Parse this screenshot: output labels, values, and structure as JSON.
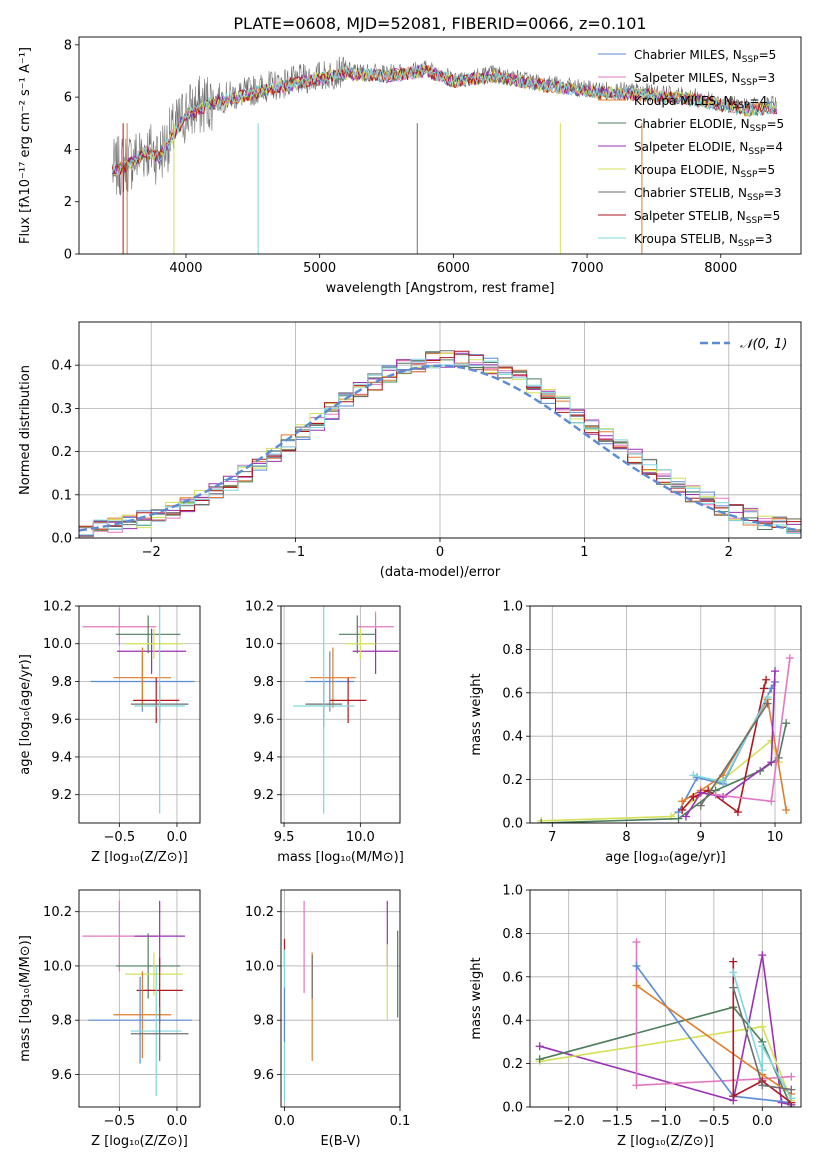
{
  "title": "PLATE=0608, MJD=52081, FIBERID=0066, z=0.101",
  "colors": {
    "Chabrier MILES": "#5b8bd4",
    "Salpeter MILES": "#e377c2",
    "Kroupa MILES": "#e07b2a",
    "Chabrier ELODIE": "#4e7d5b",
    "Salpeter ELODIE": "#9b30b5",
    "Kroupa ELODIE": "#d4e157",
    "Chabrier STELIB": "#6e6e6e",
    "Salpeter STELIB": "#b0171f",
    "Kroupa STELIB": "#7fd6dc"
  },
  "chart_data": [
    {
      "type": "line",
      "id": "spectrum",
      "xlabel": "wavelength [Angstrom, rest frame]",
      "ylabel": "Flux [fλ10⁻¹⁷ erg cm⁻² s⁻¹ A⁻¹]",
      "xlim": [
        3200,
        8600
      ],
      "ylim": [
        0,
        8.3
      ],
      "xticks": [
        4000,
        5000,
        6000,
        7000,
        8000
      ],
      "yticks": [
        0,
        2,
        4,
        6,
        8
      ],
      "legend_position": "top-right",
      "continuum_x": [
        3450,
        3600,
        3700,
        3800,
        3900,
        4000,
        4200,
        4400,
        4600,
        4800,
        5000,
        5200,
        5500,
        5800,
        6000,
        6300,
        6600,
        7000,
        7400,
        7800,
        8200,
        8400
      ],
      "continuum_y": [
        3.2,
        3.6,
        4.0,
        3.8,
        4.6,
        5.4,
        5.9,
        6.1,
        6.4,
        6.6,
        6.8,
        7.0,
        6.9,
        7.1,
        6.7,
        6.9,
        6.6,
        6.3,
        6.2,
        6.0,
        5.6,
        5.7
      ],
      "legend": [
        {
          "label": "Chabrier MILES, N",
          "sub": "SSP",
          "eq": "=5",
          "lib": "Chabrier MILES"
        },
        {
          "label": "Salpeter MILES, N",
          "sub": "SSP",
          "eq": "=3",
          "lib": "Salpeter MILES"
        },
        {
          "label": "Kroupa MILES, N",
          "sub": "SSP",
          "eq": "=4",
          "lib": "Kroupa MILES"
        },
        {
          "label": "Chabrier ELODIE, N",
          "sub": "SSP",
          "eq": "=5",
          "lib": "Chabrier ELODIE"
        },
        {
          "label": "Salpeter ELODIE, N",
          "sub": "SSP",
          "eq": "=4",
          "lib": "Salpeter ELODIE"
        },
        {
          "label": "Kroupa ELODIE, N",
          "sub": "SSP",
          "eq": "=5",
          "lib": "Kroupa ELODIE"
        },
        {
          "label": "Chabrier STELIB, N",
          "sub": "SSP",
          "eq": "=3",
          "lib": "Chabrier STELIB"
        },
        {
          "label": "Salpeter STELIB, N",
          "sub": "SSP",
          "eq": "=5",
          "lib": "Salpeter STELIB"
        },
        {
          "label": "Kroupa STELIB, N",
          "sub": "SSP",
          "eq": "=3",
          "lib": "Kroupa STELIB"
        }
      ]
    },
    {
      "type": "histogram",
      "id": "residuals",
      "xlabel": "(data-model)/error",
      "ylabel": "Normed distribution",
      "xlim": [
        -2.5,
        2.5
      ],
      "ylim": [
        0,
        0.5
      ],
      "xticks": [
        -2,
        -1,
        0,
        1,
        2
      ],
      "xticklabels": [
        "−2",
        "−1",
        "0",
        "1",
        "2"
      ],
      "yticks": [
        0.0,
        0.1,
        0.2,
        0.3,
        0.4
      ],
      "yticklabels": [
        "0.0",
        "0.1",
        "0.2",
        "0.3",
        "0.4"
      ],
      "grid": true,
      "bin_width": 0.1,
      "normal_curve": {
        "label": "𝒩(0, 1)",
        "mean": 0,
        "sigma": 1,
        "color": "#5b8bd4"
      },
      "legend_position": "top-right"
    },
    {
      "type": "scatter",
      "id": "age_vs_Z",
      "xlabel": "Z [log₁₀(Z/Z⊙)]",
      "ylabel": "age  [log₁₀(age/yr)]",
      "xlim": [
        -0.85,
        0.2
      ],
      "ylim": [
        9.05,
        10.2
      ],
      "xticks": [
        -0.5,
        0.0
      ],
      "xticklabels": [
        "−0.5",
        "0.0"
      ],
      "yticks": [
        9.2,
        9.4,
        9.6,
        9.8,
        10.0,
        10.2
      ],
      "yticklabels": [
        "9.2",
        "9.4",
        "9.6",
        "9.8",
        "10.0",
        "10.2"
      ],
      "grid": true,
      "points": [
        {
          "lib": "Salpeter MILES",
          "x": -0.5,
          "xerr": 0.32,
          "y": 10.09,
          "yerr": 0.1
        },
        {
          "lib": "Salpeter ELODIE",
          "x": -0.22,
          "xerr": 0.3,
          "y": 9.96,
          "yerr": 0.12
        },
        {
          "lib": "Chabrier ELODIE",
          "x": -0.25,
          "xerr": 0.28,
          "y": 10.05,
          "yerr": 0.1
        },
        {
          "lib": "Kroupa ELODIE",
          "x": -0.2,
          "xerr": 0.25,
          "y": 10.0,
          "yerr": 0.08
        },
        {
          "lib": "Chabrier MILES",
          "x": -0.3,
          "xerr": 0.45,
          "y": 9.8,
          "yerr": 0.16
        },
        {
          "lib": "Kroupa MILES",
          "x": -0.3,
          "xerr": 0.25,
          "y": 9.82,
          "yerr": 0.16
        },
        {
          "lib": "Salpeter STELIB",
          "x": -0.18,
          "xerr": 0.2,
          "y": 9.7,
          "yerr": 0.12
        },
        {
          "lib": "Chabrier STELIB",
          "x": -0.15,
          "xerr": 0.25,
          "y": 9.68,
          "yerr": 0.1
        },
        {
          "lib": "Kroupa STELIB",
          "x": -0.15,
          "xerr": 0.22,
          "y": 9.67,
          "yerr": 0.57
        }
      ]
    },
    {
      "type": "scatter",
      "id": "age_vs_mass",
      "xlabel": "mass [log₁₀(M/M⊙)]",
      "ylabel": "",
      "xlim": [
        9.48,
        10.26
      ],
      "ylim": [
        9.05,
        10.2
      ],
      "xticks": [
        9.5,
        10.0
      ],
      "xticklabels": [
        "9.5",
        "10.0"
      ],
      "yticks": [
        9.2,
        9.4,
        9.6,
        9.8,
        10.0,
        10.2
      ],
      "yticklabels": [
        "9.2",
        "9.4",
        "9.6",
        "9.8",
        "10.0",
        "10.2"
      ],
      "grid": true,
      "points": [
        {
          "lib": "Salpeter MILES",
          "x": 10.1,
          "xerr": 0.12,
          "y": 10.09,
          "yerr": 0.08
        },
        {
          "lib": "Salpeter ELODIE",
          "x": 10.1,
          "xerr": 0.15,
          "y": 9.96,
          "yerr": 0.12
        },
        {
          "lib": "Chabrier ELODIE",
          "x": 9.98,
          "xerr": 0.12,
          "y": 10.05,
          "yerr": 0.1
        },
        {
          "lib": "Kroupa ELODIE",
          "x": 10.0,
          "xerr": 0.1,
          "y": 10.0,
          "yerr": 0.08
        },
        {
          "lib": "Chabrier MILES",
          "x": 9.8,
          "xerr": 0.16,
          "y": 9.8,
          "yerr": 0.16
        },
        {
          "lib": "Kroupa MILES",
          "x": 9.82,
          "xerr": 0.15,
          "y": 9.82,
          "yerr": 0.16
        },
        {
          "lib": "Salpeter STELIB",
          "x": 9.92,
          "xerr": 0.12,
          "y": 9.7,
          "yerr": 0.12
        },
        {
          "lib": "Chabrier STELIB",
          "x": 9.76,
          "xerr": 0.12,
          "y": 9.68,
          "yerr": 0.12
        },
        {
          "lib": "Kroupa STELIB",
          "x": 9.76,
          "xerr": 0.2,
          "y": 9.67,
          "yerr": 0.57
        }
      ]
    },
    {
      "type": "line",
      "id": "weight_vs_age",
      "xlabel": "age  [log₁₀(age/yr)]",
      "ylabel": "mass weight",
      "xlim": [
        6.7,
        10.35
      ],
      "ylim": [
        0,
        1.0
      ],
      "xticks": [
        7,
        8,
        9,
        10
      ],
      "xticklabels": [
        "7",
        "8",
        "9",
        "10"
      ],
      "yticks": [
        0.0,
        0.2,
        0.4,
        0.6,
        0.8,
        1.0
      ],
      "yticklabels": [
        "0.0",
        "0.2",
        "0.4",
        "0.6",
        "0.8",
        "1.0"
      ],
      "grid": true,
      "series": [
        {
          "lib": "Kroupa ELODIE",
          "x": [
            6.85,
            8.6,
            9.3,
            9.95,
            10.05
          ],
          "y": [
            0.01,
            0.03,
            0.2,
            0.38,
            0.28
          ]
        },
        {
          "lib": "Chabrier ELODIE",
          "x": [
            6.85,
            8.7,
            9.2,
            9.8,
            10.05,
            10.15
          ],
          "y": [
            0.0,
            0.02,
            0.15,
            0.24,
            0.3,
            0.46
          ]
        },
        {
          "lib": "Chabrier MILES",
          "x": [
            8.7,
            8.95,
            9.3,
            9.95,
            10.0
          ],
          "y": [
            0.05,
            0.21,
            0.18,
            0.62,
            0.65
          ]
        },
        {
          "lib": "Kroupa MILES",
          "x": [
            8.75,
            9.0,
            9.3,
            9.9,
            10.15
          ],
          "y": [
            0.1,
            0.15,
            0.22,
            0.57,
            0.06
          ]
        },
        {
          "lib": "Salpeter STELIB",
          "x": [
            8.75,
            8.9,
            9.1,
            9.5,
            9.85,
            9.88
          ],
          "y": [
            0.06,
            0.12,
            0.15,
            0.05,
            0.62,
            0.66
          ]
        },
        {
          "lib": "Salpeter ELODIE",
          "x": [
            8.8,
            9.0,
            9.3,
            9.95,
            10.0
          ],
          "y": [
            0.03,
            0.14,
            0.12,
            0.28,
            0.7
          ]
        },
        {
          "lib": "Salpeter MILES",
          "x": [
            9.2,
            9.95,
            10.2
          ],
          "y": [
            0.13,
            0.1,
            0.76
          ]
        },
        {
          "lib": "Kroupa STELIB",
          "x": [
            8.9,
            9.3,
            9.9
          ],
          "y": [
            0.22,
            0.19,
            0.58
          ]
        },
        {
          "lib": "Chabrier STELIB",
          "x": [
            9.0,
            9.9
          ],
          "y": [
            0.08,
            0.55
          ]
        }
      ]
    },
    {
      "type": "scatter",
      "id": "mass_vs_Z",
      "xlabel": "Z [log₁₀(Z/Z⊙)]",
      "ylabel": "mass [log₁₀(M/M⊙)]",
      "xlim": [
        -0.85,
        0.2
      ],
      "ylim": [
        9.48,
        10.28
      ],
      "xticks": [
        -0.5,
        0.0
      ],
      "xticklabels": [
        "−0.5",
        "0.0"
      ],
      "yticks": [
        9.6,
        9.8,
        10.0,
        10.2
      ],
      "yticklabels": [
        "9.6",
        "9.8",
        "10.0",
        "10.2"
      ],
      "grid": true,
      "points": [
        {
          "lib": "Salpeter MILES",
          "x": -0.5,
          "xerr": 0.32,
          "y": 10.11,
          "yerr": 0.13
        },
        {
          "lib": "Salpeter ELODIE",
          "x": -0.15,
          "xerr": 0.22,
          "y": 10.11,
          "yerr": 0.13
        },
        {
          "lib": "Chabrier ELODIE",
          "x": -0.25,
          "xerr": 0.28,
          "y": 10.0,
          "yerr": 0.12
        },
        {
          "lib": "Kroupa ELODIE",
          "x": -0.2,
          "xerr": 0.25,
          "y": 9.97,
          "yerr": 0.08
        },
        {
          "lib": "Salpeter STELIB",
          "x": -0.15,
          "xerr": 0.2,
          "y": 9.91,
          "yerr": 0.12
        },
        {
          "lib": "Kroupa MILES",
          "x": -0.3,
          "xerr": 0.25,
          "y": 9.82,
          "yerr": 0.16
        },
        {
          "lib": "Chabrier MILES",
          "x": -0.32,
          "xerr": 0.45,
          "y": 9.8,
          "yerr": 0.16
        },
        {
          "lib": "Kroupa STELIB",
          "x": -0.18,
          "xerr": 0.22,
          "y": 9.76,
          "yerr": 0.24
        },
        {
          "lib": "Chabrier STELIB",
          "x": -0.15,
          "xerr": 0.25,
          "y": 9.75,
          "yerr": 0.1
        }
      ]
    },
    {
      "type": "errorbar",
      "id": "mass_vs_ebv",
      "xlabel": "E(B-V)",
      "ylabel": "",
      "xlim": [
        -0.003,
        0.1
      ],
      "ylim": [
        9.48,
        10.28
      ],
      "xticks": [
        0.0,
        0.1
      ],
      "xticklabels": [
        "0.0",
        "0.1"
      ],
      "yticks": [
        9.6,
        9.8,
        10.0,
        10.2
      ],
      "yticklabels": [
        "9.6",
        "9.8",
        "10.0",
        "10.2"
      ],
      "grid": true,
      "points": [
        {
          "lib": "Salpeter STELIB",
          "x": 0.0,
          "y": 10.05,
          "yerr": 0.05
        },
        {
          "lib": "Kroupa STELIB",
          "x": 0.0,
          "y": 9.78,
          "yerr": 0.28
        },
        {
          "lib": "Chabrier MILES",
          "x": 0.0,
          "y": 9.82,
          "yerr": 0.1
        },
        {
          "lib": "Salpeter MILES",
          "x": 0.017,
          "y": 10.07,
          "yerr": 0.17
        },
        {
          "lib": "Kroupa MILES",
          "x": 0.024,
          "y": 9.85,
          "yerr": 0.2
        },
        {
          "lib": "Chabrier STELIB",
          "x": 0.024,
          "y": 9.96,
          "yerr": 0.08
        },
        {
          "lib": "Salpeter ELODIE",
          "x": 0.089,
          "y": 10.12,
          "yerr": 0.12
        },
        {
          "lib": "Kroupa ELODIE",
          "x": 0.089,
          "y": 9.94,
          "yerr": 0.14
        },
        {
          "lib": "Chabrier ELODIE",
          "x": 0.098,
          "y": 9.97,
          "yerr": 0.16
        }
      ]
    },
    {
      "type": "line",
      "id": "weight_vs_Z",
      "xlabel": "Z [log₁₀(Z/Z⊙)]",
      "ylabel": "mass weight",
      "xlim": [
        -2.4,
        0.4
      ],
      "ylim": [
        0,
        1.0
      ],
      "xticks": [
        -2.0,
        -1.5,
        -1.0,
        -0.5,
        0.0
      ],
      "xticklabels": [
        "−2.0",
        "−1.5",
        "−1.0",
        "−0.5",
        "0.0"
      ],
      "yticks": [
        0.0,
        0.2,
        0.4,
        0.6,
        0.8,
        1.0
      ],
      "yticklabels": [
        "0.0",
        "0.2",
        "0.4",
        "0.6",
        "0.8",
        "1.0"
      ],
      "grid": true,
      "series": [
        {
          "lib": "Salpeter ELODIE",
          "x": [
            -2.3,
            -0.3,
            0.0,
            0.2,
            0.3
          ],
          "y": [
            0.28,
            0.03,
            0.7,
            0.02,
            0.01
          ]
        },
        {
          "lib": "Kroupa ELODIE",
          "x": [
            -2.3,
            0.0,
            0.3
          ],
          "y": [
            0.21,
            0.37,
            0.03
          ]
        },
        {
          "lib": "Chabrier ELODIE",
          "x": [
            -2.3,
            -0.3,
            0.0,
            0.3
          ],
          "y": [
            0.22,
            0.46,
            0.3,
            0.0
          ]
        },
        {
          "lib": "Salpeter MILES",
          "x": [
            -1.3,
            -1.3,
            0.0,
            0.3
          ],
          "y": [
            0.76,
            0.1,
            0.13,
            0.14
          ]
        },
        {
          "lib": "Chabrier MILES",
          "x": [
            -1.3,
            -0.3,
            0.3
          ],
          "y": [
            0.65,
            0.05,
            0.02
          ]
        },
        {
          "lib": "Kroupa MILES",
          "x": [
            -1.3,
            0.0,
            0.3
          ],
          "y": [
            0.56,
            0.15,
            0.06
          ]
        },
        {
          "lib": "Salpeter STELIB",
          "x": [
            -0.3,
            -0.3,
            0.0,
            0.3
          ],
          "y": [
            0.67,
            0.05,
            0.12,
            0.02
          ]
        },
        {
          "lib": "Kroupa STELIB",
          "x": [
            -0.3,
            0.0,
            0.0,
            0.3
          ],
          "y": [
            0.62,
            0.17,
            0.28,
            0.04
          ]
        },
        {
          "lib": "Chabrier STELIB",
          "x": [
            -0.3,
            0.0,
            0.3
          ],
          "y": [
            0.55,
            0.1,
            0.08
          ]
        }
      ]
    }
  ]
}
